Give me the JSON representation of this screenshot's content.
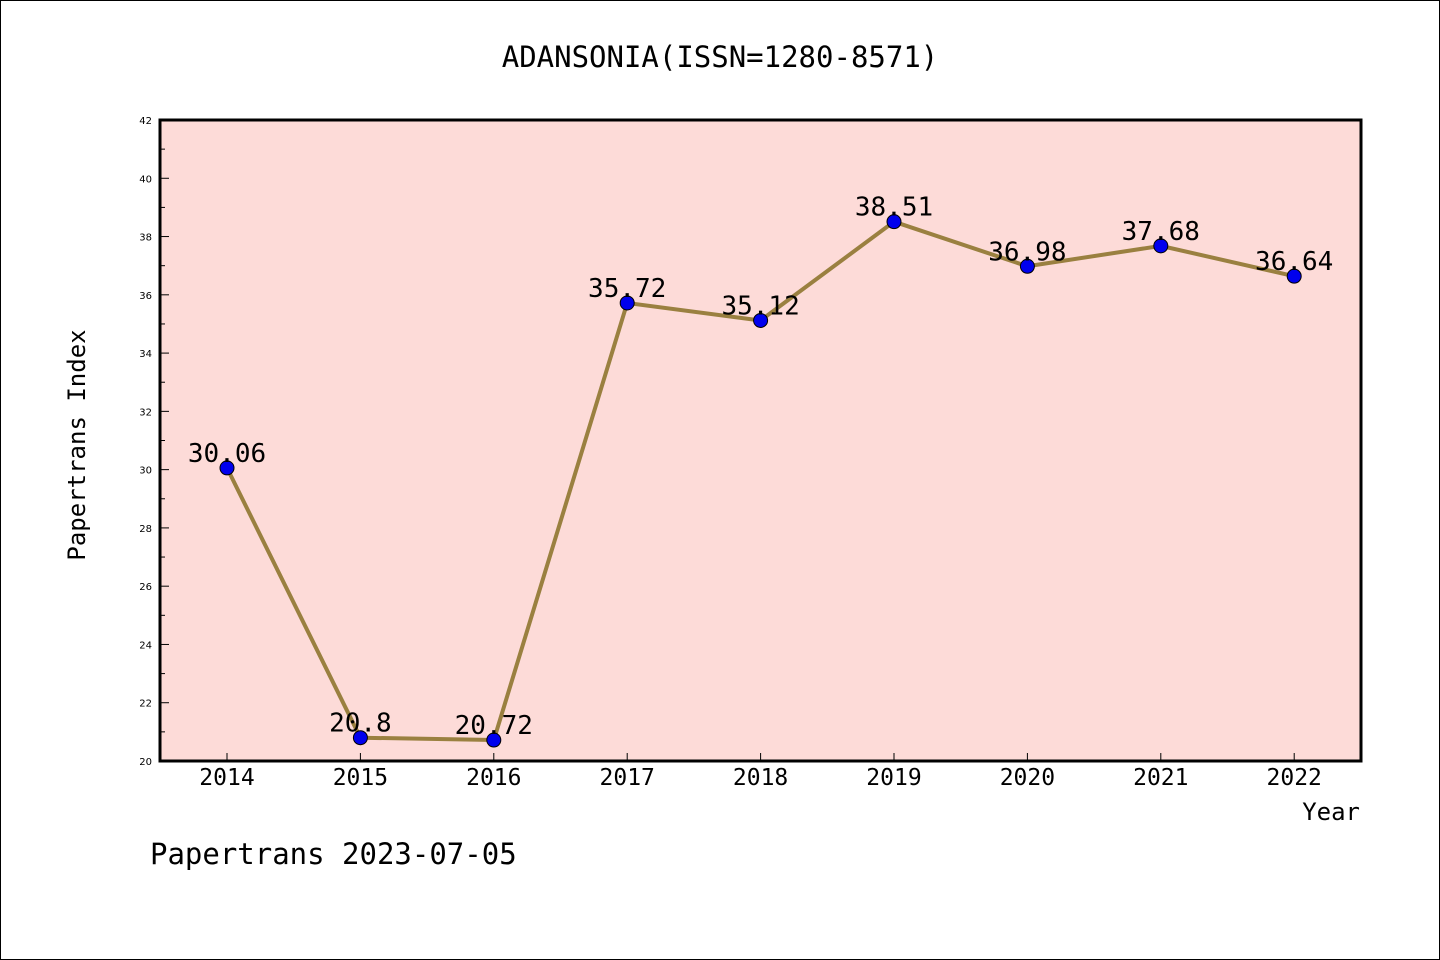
{
  "chart_data": {
    "type": "line",
    "title": "ADANSONIA(ISSN=1280-8571)",
    "xlabel": "Year",
    "ylabel": "Papertrans Index",
    "categories": [
      "2014",
      "2015",
      "2016",
      "2017",
      "2018",
      "2019",
      "2020",
      "2021",
      "2022"
    ],
    "values": [
      30.06,
      20.8,
      20.72,
      35.72,
      35.12,
      38.51,
      36.98,
      37.68,
      36.64
    ],
    "data_labels": [
      "30.06",
      "20.8",
      "20.72",
      "35.72",
      "35.12",
      "38.51",
      "36.98",
      "37.68",
      "36.64"
    ],
    "ylim": [
      20,
      42
    ],
    "yticks": [
      20,
      22,
      24,
      26,
      28,
      30,
      32,
      34,
      36,
      38,
      40,
      42
    ],
    "grid": false,
    "colors": {
      "plot_background": "#fddbd8",
      "line": "#9a8040",
      "marker": "#0000ee"
    }
  },
  "footer": {
    "credit": "Papertrans 2023-07-05"
  }
}
